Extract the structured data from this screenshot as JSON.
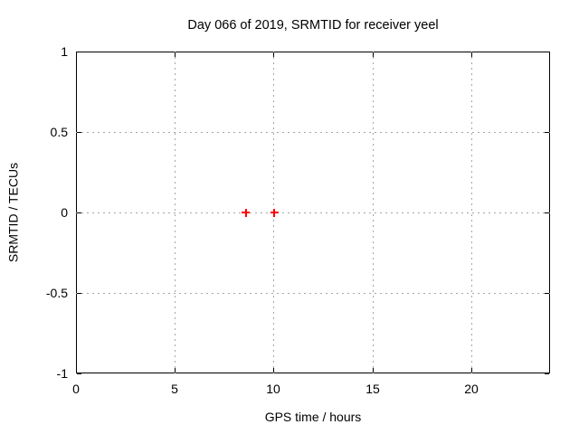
{
  "chart_data": {
    "type": "scatter",
    "title": "Day 066 of 2019, SRMTID for receiver yeel",
    "xlabel": "GPS time / hours",
    "ylabel": "SRMTID / TECUs",
    "xlim": [
      0,
      24
    ],
    "ylim": [
      -1,
      1
    ],
    "xticks": [
      0,
      5,
      10,
      15,
      20
    ],
    "yticks": [
      -1,
      -0.5,
      0,
      0.5,
      1
    ],
    "grid": true,
    "legend": "none",
    "series": [
      {
        "name": "SRMTID",
        "marker": "plus",
        "color": "#ff0000",
        "points": [
          {
            "x": 8.6,
            "y": 0.0
          },
          {
            "x": 10.05,
            "y": 0.0
          }
        ]
      }
    ],
    "colors": {
      "background": "#ffffff",
      "axis": "#000000",
      "text": "#000000",
      "grid": "#a6a6a6"
    }
  }
}
